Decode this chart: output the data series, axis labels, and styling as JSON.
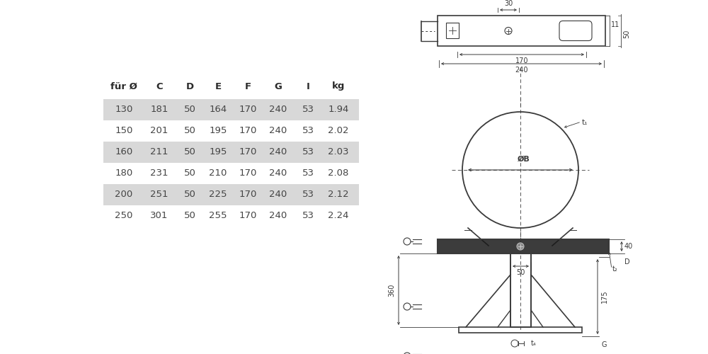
{
  "bg_color": "#ffffff",
  "table": {
    "headers": [
      "für Ø",
      "C",
      "D",
      "E",
      "F",
      "G",
      "I",
      "kg"
    ],
    "rows": [
      [
        "130",
        "181",
        "50",
        "164",
        "170",
        "240",
        "53",
        "1.94"
      ],
      [
        "150",
        "201",
        "50",
        "195",
        "170",
        "240",
        "53",
        "2.02"
      ],
      [
        "160",
        "211",
        "50",
        "195",
        "170",
        "240",
        "53",
        "2.03"
      ],
      [
        "180",
        "231",
        "50",
        "210",
        "170",
        "240",
        "53",
        "2.08"
      ],
      [
        "200",
        "251",
        "50",
        "225",
        "170",
        "240",
        "53",
        "2.12"
      ],
      [
        "250",
        "301",
        "50",
        "255",
        "170",
        "240",
        "53",
        "2.24"
      ]
    ],
    "shaded_rows": [
      0,
      2,
      4
    ],
    "row_bg_shaded": "#d8d8d8",
    "header_color": "#2a2a2a",
    "text_color": "#444444",
    "font_size": 9.5,
    "header_font_size": 9.5
  },
  "line_color": "#3a3a3a",
  "dim_color": "#3a3a3a",
  "dim_font_size": 7.0
}
